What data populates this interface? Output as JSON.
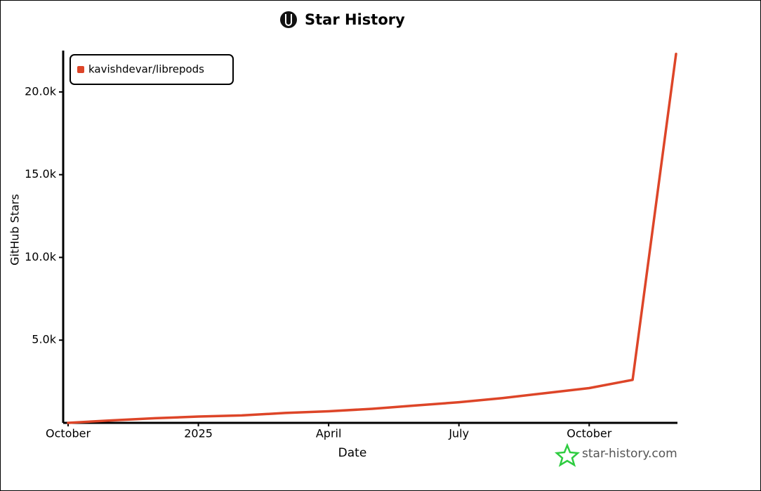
{
  "chart_data": {
    "type": "line",
    "title": "Star History",
    "x_label": "Date",
    "y_label": "GitHub Stars",
    "watermark": "star-history.com",
    "legend": "top-left",
    "x": [
      "2024-10",
      "2024-11",
      "2024-12",
      "2025-01",
      "2025-02",
      "2025-03",
      "2025-04",
      "2025-05",
      "2025-06",
      "2025-07",
      "2025-08",
      "2025-09",
      "2025-10",
      "2025-11",
      "2025-12"
    ],
    "series": [
      {
        "name": "kavishdevar/librepods",
        "color": "#dd4528",
        "values": [
          0,
          150,
          280,
          380,
          450,
          600,
          700,
          850,
          1050,
          1250,
          1500,
          1800,
          2100,
          2600,
          22300
        ]
      }
    ],
    "xlim": [
      "2024-10",
      "2025-12"
    ],
    "xticks": [
      {
        "value": "2024-10",
        "label": "October"
      },
      {
        "value": "2025-01",
        "label": "2025"
      },
      {
        "value": "2025-04",
        "label": "April"
      },
      {
        "value": "2025-07",
        "label": "July"
      },
      {
        "value": "2025-10",
        "label": "October"
      }
    ],
    "ylim": [
      0,
      22500
    ],
    "yticks": [
      {
        "value": 5000,
        "label": "5.0k"
      },
      {
        "value": 10000,
        "label": "10.0k"
      },
      {
        "value": 15000,
        "label": "15.0k"
      },
      {
        "value": 20000,
        "label": "20.0k"
      }
    ]
  }
}
